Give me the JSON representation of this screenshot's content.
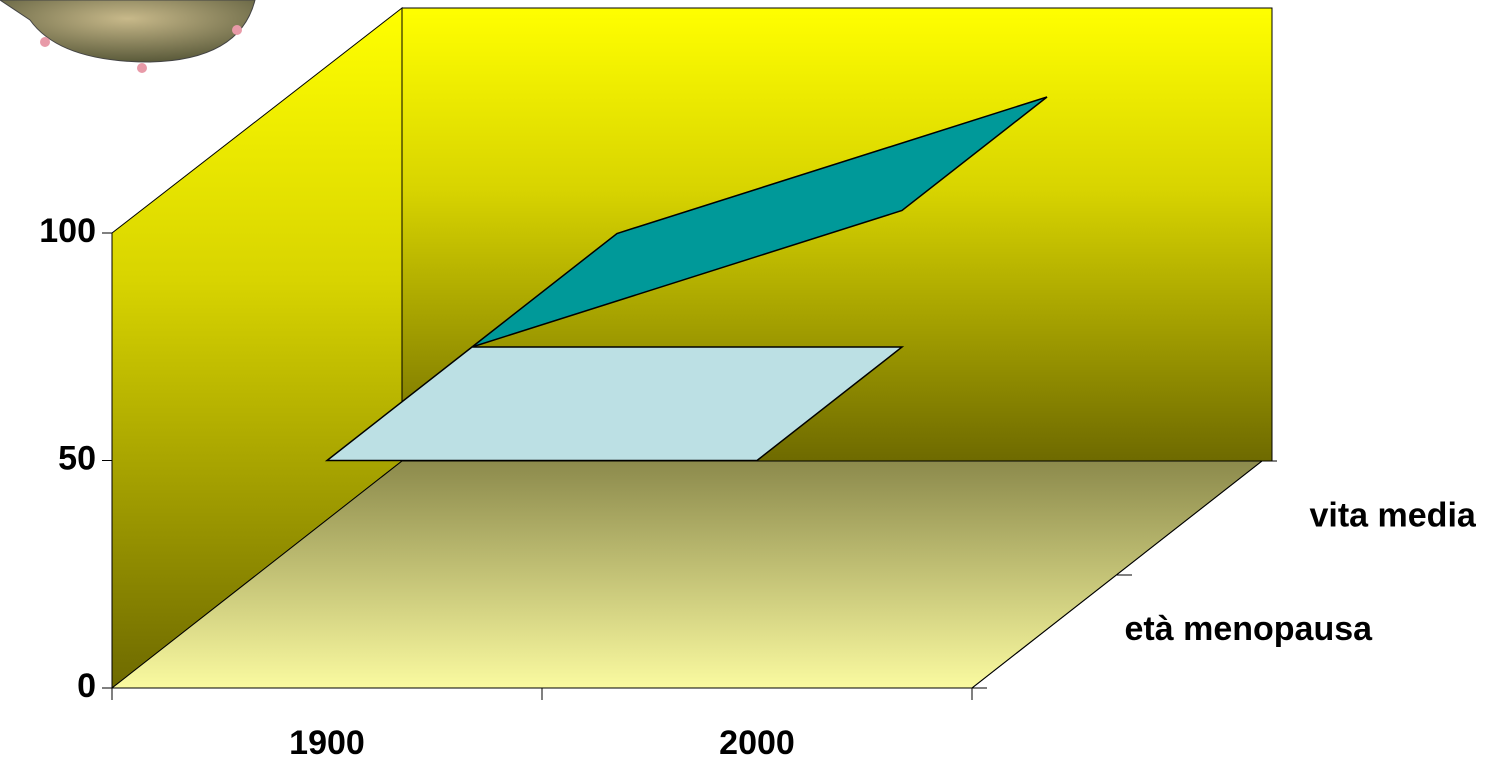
{
  "chart_data": {
    "type": "ribbon3d",
    "categories": [
      "1900",
      "2000"
    ],
    "series": [
      {
        "name": "età menopausa",
        "color": "#bce0e4",
        "values": [
          50,
          50
        ]
      },
      {
        "name": "vita media",
        "color": "#009999",
        "values": [
          50,
          80
        ]
      }
    ],
    "ylim": [
      0,
      100
    ],
    "yticks": [
      0,
      50,
      100
    ]
  }
}
